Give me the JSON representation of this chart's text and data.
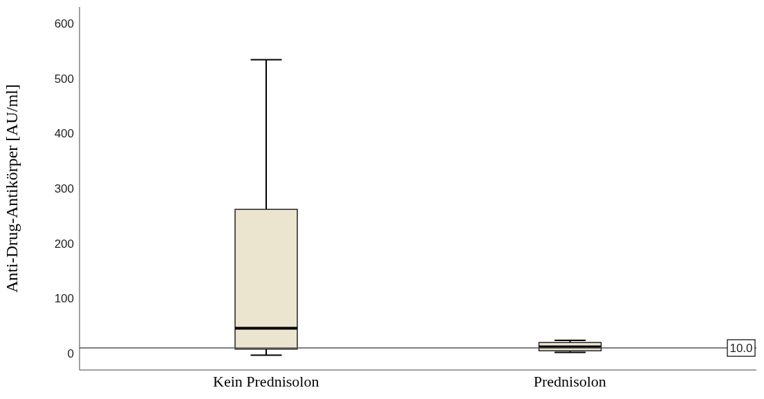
{
  "chart_data": {
    "type": "box",
    "ylabel": "Anti-Drug-Antikörper [AU/ml]",
    "categories": [
      "Kein Prednisolon",
      "Prednisolon"
    ],
    "boxes": [
      {
        "low": -3,
        "q1": 8,
        "median": 46,
        "q3": 262,
        "high": 534
      },
      {
        "low": 2,
        "q1": 5,
        "median": 12,
        "q3": 20,
        "high": 24
      }
    ],
    "color": "#ebe4cf",
    "ylim": [
      -30,
      630
    ],
    "yticks": [
      0,
      100,
      200,
      300,
      400,
      500,
      600
    ],
    "ref_lines": [
      {
        "axis": "y",
        "value": 10,
        "label": "10.0"
      }
    ]
  }
}
